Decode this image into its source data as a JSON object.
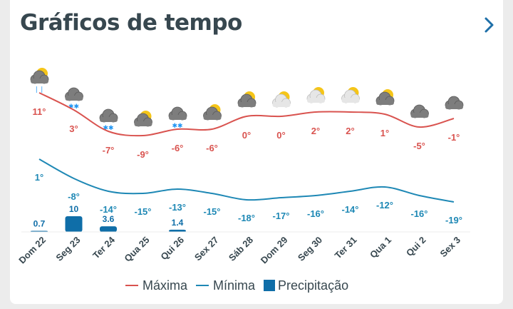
{
  "header": {
    "title": "Gráficos de tempo",
    "next_icon": "chevron-right-icon"
  },
  "colors": {
    "max": "#d9534f",
    "min": "#1e88b5",
    "precip": "#0f6ea8",
    "text": "#37474f",
    "grid": "#eeeeee"
  },
  "weather_icons": [
    "sun-cloud-rain-icon",
    "cloud-snow-icon",
    "cloud-snow-icon",
    "sun-cloud-icon",
    "cloud-snow-icon",
    "sun-cloud-icon",
    "sun-cloud-icon",
    "sun-cloud-light-icon",
    "sun-cloud-light-icon",
    "sun-cloud-light-icon",
    "sun-cloud-icon",
    "cloud-icon",
    "cloud-icon"
  ],
  "chart_data": {
    "type": "line",
    "categories": [
      "Dom 22",
      "Seg 23",
      "Ter 24",
      "Qua 25",
      "Qui 26",
      "Sex 27",
      "Sáb 28",
      "Dom 29",
      "Seg 30",
      "Ter 31",
      "Qua 1",
      "Qui 2",
      "Sex 3"
    ],
    "series": [
      {
        "name": "Máxima",
        "type": "line",
        "values": [
          11,
          3,
          -7,
          -9,
          -6,
          -6,
          0,
          0,
          2,
          2,
          1,
          -5,
          -1
        ],
        "labels": [
          "11°",
          "3°",
          "-7°",
          "-9°",
          "-6°",
          "-6°",
          "0°",
          "0°",
          "2°",
          "2°",
          "1°",
          "-5°",
          "-1°"
        ]
      },
      {
        "name": "Mínima",
        "type": "line",
        "values": [
          1,
          -8,
          -14,
          -15,
          -13,
          -15,
          -18,
          -17,
          -16,
          -14,
          -12,
          -16,
          -19
        ],
        "labels": [
          "1°",
          "-8°",
          "-14°",
          "-15°",
          "-13°",
          "-15°",
          "-18°",
          "-17°",
          "-16°",
          "-14°",
          "-12°",
          "-16°",
          "-19°"
        ]
      },
      {
        "name": "Precipitação",
        "type": "bar",
        "values": [
          0.7,
          10,
          3.6,
          0,
          1.4,
          0,
          0,
          0,
          0,
          0,
          0,
          0,
          0
        ],
        "labels": [
          "0.7",
          "10",
          "3.6",
          "",
          "1.4",
          "",
          "",
          "",
          "",
          "",
          "",
          "",
          ""
        ]
      }
    ],
    "legend": [
      "Máxima",
      "Mínima",
      "Precipitação"
    ],
    "legend_position": "bottom"
  }
}
